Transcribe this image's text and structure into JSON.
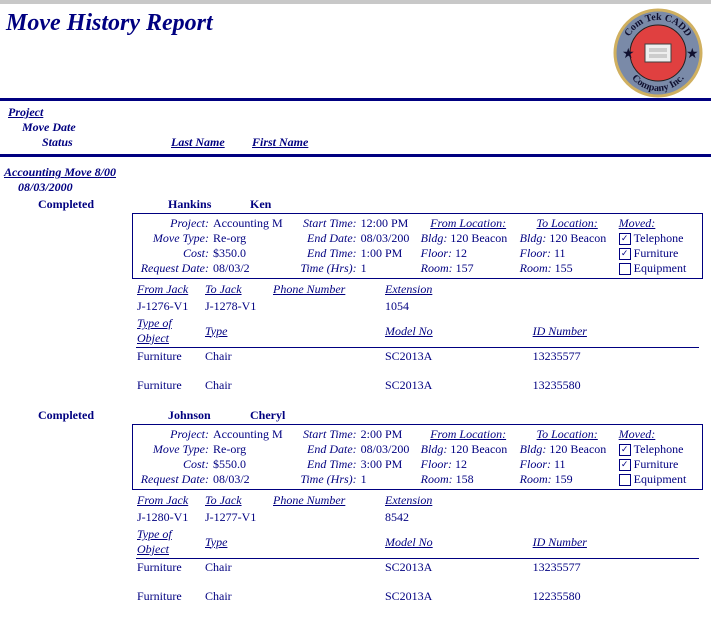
{
  "title": "Move History Report",
  "logo": {
    "outer_text_top": "Com Tek CADD",
    "outer_text_bottom": "Company Inc."
  },
  "column_headers": {
    "project": "Project",
    "move_date": "Move Date",
    "status": "Status",
    "last_name": "Last Name",
    "first_name": "First Name"
  },
  "group": {
    "title": "Accounting Move 8/00",
    "date": "08/03/2000"
  },
  "box_labels": {
    "project": "Project:",
    "move_type": "Move Type:",
    "cost": "Cost:",
    "request_date": "Request Date:",
    "start_time": "Start Time:",
    "end_date": "End Date:",
    "end_time": "End Time:",
    "time_hrs": "Time (Hrs):",
    "from_location": "From Location:",
    "to_location": "To Location:",
    "bldg": "Bldg:",
    "floor": "Floor:",
    "room": "Room:",
    "moved": "Moved:",
    "telephone": "Telephone",
    "furniture": "Furniture",
    "equipment": "Equipment",
    "from_jack": "From Jack",
    "to_jack": "To Jack",
    "phone_number": "Phone Number",
    "extension": "Extension",
    "type_of_object": "Type of Object",
    "type": "Type",
    "model_no": "Model No",
    "id_number": "ID Number"
  },
  "entries": [
    {
      "status": "Completed",
      "last_name": "Hankins",
      "first_name": "Ken",
      "project": "Accounting M",
      "move_type": "Re-org",
      "cost": "$350.0",
      "request_date": "08/03/2",
      "start_time": "12:00 PM",
      "end_date": "08/03/200",
      "end_time": "1:00 PM",
      "time_hrs": "1",
      "from": {
        "bldg": "120 Beacon",
        "floor": "12",
        "room": "157"
      },
      "to": {
        "bldg": "120 Beacon",
        "floor": "11",
        "room": "155"
      },
      "moved": {
        "telephone": true,
        "furniture": true,
        "equipment": false
      },
      "jacks": {
        "from": "J-1276-V1",
        "to": "J-1278-V1",
        "phone": "",
        "ext": "1054"
      },
      "objects": [
        {
          "obj": "Furniture",
          "type": "Chair",
          "model": "SC2013A",
          "id": "13235577"
        },
        {
          "obj": "Furniture",
          "type": "Chair",
          "model": "SC2013A",
          "id": "13235580"
        }
      ]
    },
    {
      "status": "Completed",
      "last_name": "Johnson",
      "first_name": "Cheryl",
      "project": "Accounting M",
      "move_type": "Re-org",
      "cost": "$550.0",
      "request_date": "08/03/2",
      "start_time": "2:00 PM",
      "end_date": "08/03/200",
      "end_time": "3:00 PM",
      "time_hrs": "1",
      "from": {
        "bldg": "120 Beacon",
        "floor": "12",
        "room": "158"
      },
      "to": {
        "bldg": "120 Beacon",
        "floor": "11",
        "room": "159"
      },
      "moved": {
        "telephone": true,
        "furniture": true,
        "equipment": false
      },
      "jacks": {
        "from": "J-1280-V1",
        "to": "J-1277-V1",
        "phone": "",
        "ext": "8542"
      },
      "objects": [
        {
          "obj": "Furniture",
          "type": "Chair",
          "model": "SC2013A",
          "id": "13235577"
        },
        {
          "obj": "Furniture",
          "type": "Chair",
          "model": "SC2013A",
          "id": "12235580"
        }
      ]
    }
  ]
}
